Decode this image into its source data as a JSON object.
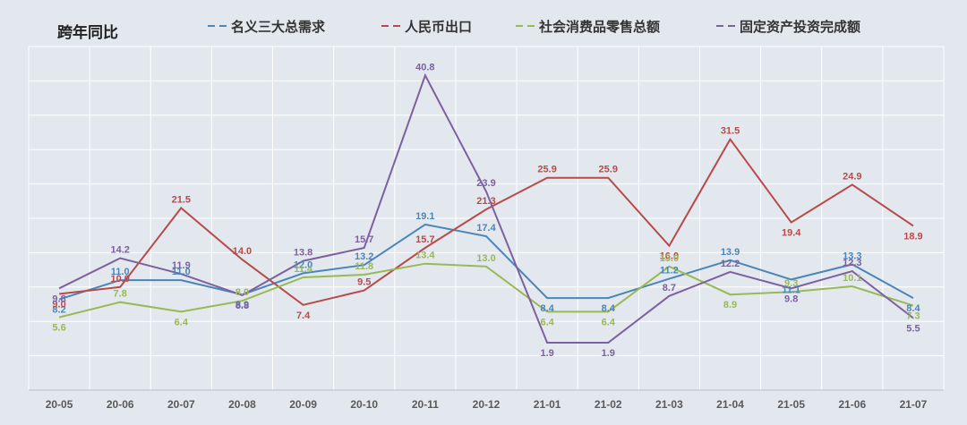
{
  "chart_data": {
    "type": "line",
    "title": "跨年同比",
    "xlabel": "",
    "ylabel": "",
    "ylim": [
      -5,
      45
    ],
    "grid": true,
    "legend_position": "top",
    "categories": [
      "20-05",
      "20-06",
      "20-07",
      "20-08",
      "20-09",
      "20-10",
      "20-11",
      "20-12",
      "21-01",
      "21-02",
      "21-03",
      "21-04",
      "21-05",
      "21-06",
      "21-07"
    ],
    "series": [
      {
        "name": "名义三大总需求",
        "color": "#4a86b8",
        "values": [
          8.2,
          11.0,
          11.0,
          8.9,
          12.0,
          13.2,
          19.1,
          17.4,
          8.4,
          8.4,
          11.2,
          13.9,
          11.1,
          13.3,
          8.4
        ]
      },
      {
        "name": "人民币出口",
        "color": "#b84a4a",
        "values": [
          9.0,
          10.0,
          21.5,
          14.0,
          7.4,
          9.5,
          15.7,
          21.3,
          25.9,
          25.9,
          16.0,
          31.5,
          19.4,
          24.9,
          18.9
        ]
      },
      {
        "name": "社会消费品零售总额",
        "color": "#98b954",
        "values": [
          5.6,
          7.8,
          6.4,
          8.0,
          11.4,
          11.8,
          13.4,
          13.0,
          6.4,
          6.4,
          13.0,
          8.9,
          9.3,
          10.1,
          7.3
        ]
      },
      {
        "name": "固定资产投资完成额",
        "color": "#7d60a0",
        "values": [
          9.8,
          14.2,
          11.9,
          8.8,
          13.8,
          15.7,
          40.8,
          23.9,
          1.9,
          1.9,
          8.7,
          12.2,
          9.8,
          12.3,
          5.5
        ]
      }
    ]
  }
}
